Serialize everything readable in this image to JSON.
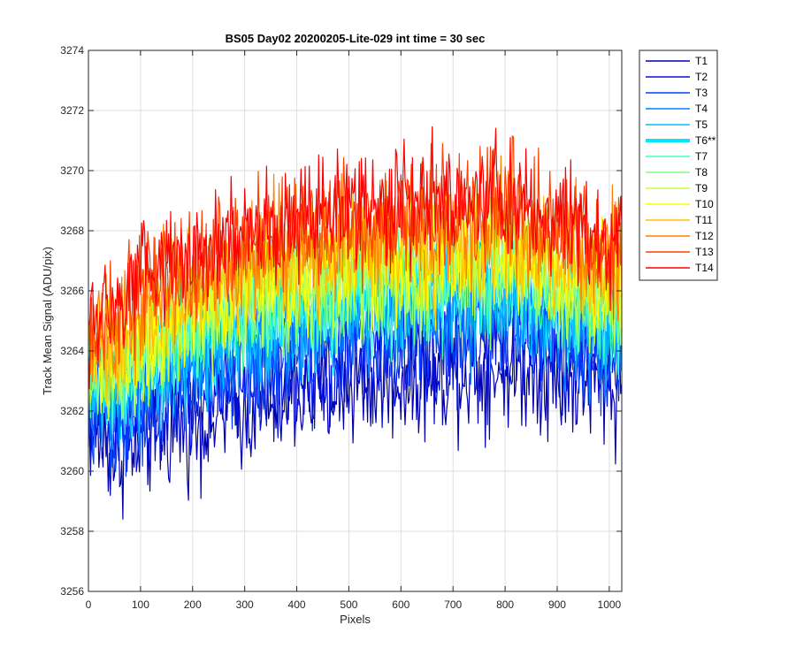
{
  "chart_data": {
    "type": "line",
    "title": "BS05 Day02 20200205-Lite-029 int time = 30 sec",
    "xlabel": "Pixels",
    "ylabel": "Track Mean Signal (ADU/pix)",
    "xlim": [
      0,
      1024
    ],
    "ylim": [
      3256,
      3274
    ],
    "xticks": [
      0,
      100,
      200,
      300,
      400,
      500,
      600,
      700,
      800,
      900,
      1000
    ],
    "yticks": [
      3256,
      3258,
      3260,
      3262,
      3264,
      3266,
      3268,
      3270,
      3272,
      3274
    ],
    "grid": true,
    "legend_position": "outside-right",
    "x_sample": [
      0,
      50,
      100,
      150,
      200,
      250,
      300,
      350,
      400,
      450,
      500,
      550,
      600,
      650,
      700,
      750,
      800,
      850,
      900,
      950,
      1000,
      1024
    ],
    "series": [
      {
        "name": "T1",
        "color": "#0000b0",
        "width": 1.5,
        "values": [
          3261.5,
          3260.5,
          3260.9,
          3261.3,
          3261.6,
          3261.8,
          3262.0,
          3262.2,
          3262.4,
          3262.6,
          3262.8,
          3262.9,
          3263.0,
          3263.1,
          3263.2,
          3263.3,
          3263.4,
          3263.4,
          3263.0,
          3262.9,
          3262.8,
          3262.7
        ]
      },
      {
        "name": "T2",
        "color": "#0010d8",
        "width": 1.5,
        "values": [
          3261.9,
          3261.1,
          3261.6,
          3262.0,
          3262.3,
          3262.5,
          3262.7,
          3262.9,
          3263.1,
          3263.3,
          3263.5,
          3263.6,
          3263.7,
          3263.8,
          3263.9,
          3264.0,
          3264.1,
          3264.1,
          3263.7,
          3263.6,
          3263.5,
          3263.4
        ]
      },
      {
        "name": "T3",
        "color": "#0040ff",
        "width": 1.5,
        "values": [
          3262.2,
          3261.6,
          3262.2,
          3262.7,
          3263.1,
          3263.4,
          3263.6,
          3263.8,
          3264.0,
          3264.2,
          3264.3,
          3264.5,
          3264.6,
          3264.7,
          3264.8,
          3264.9,
          3265.0,
          3265.0,
          3264.5,
          3264.3,
          3264.2,
          3264.1
        ]
      },
      {
        "name": "T4",
        "color": "#0080ff",
        "width": 1.5,
        "values": [
          3262.5,
          3262.0,
          3262.7,
          3263.3,
          3263.7,
          3264.0,
          3264.2,
          3264.4,
          3264.6,
          3264.8,
          3265.0,
          3265.1,
          3265.2,
          3265.3,
          3265.4,
          3265.5,
          3265.6,
          3265.5,
          3264.9,
          3264.7,
          3264.6,
          3264.5
        ]
      },
      {
        "name": "T5",
        "color": "#00c0ff",
        "width": 1.5,
        "values": [
          3262.7,
          3262.3,
          3263.0,
          3263.6,
          3264.0,
          3264.3,
          3264.6,
          3264.8,
          3265.0,
          3265.2,
          3265.3,
          3265.4,
          3265.5,
          3265.6,
          3265.7,
          3265.8,
          3265.8,
          3265.7,
          3265.1,
          3264.9,
          3264.8,
          3264.7
        ]
      },
      {
        "name": "T6**",
        "color": "#00e8ff",
        "width": 4,
        "values": [
          3262.9,
          3262.6,
          3263.3,
          3263.9,
          3264.3,
          3264.6,
          3264.9,
          3265.1,
          3265.3,
          3265.5,
          3265.6,
          3265.7,
          3265.8,
          3265.9,
          3266.0,
          3266.1,
          3266.1,
          3266.0,
          3265.3,
          3265.1,
          3265.0,
          3264.9
        ]
      },
      {
        "name": "T7",
        "color": "#40ffc0",
        "width": 1.5,
        "values": [
          3263.1,
          3262.9,
          3263.6,
          3264.2,
          3264.6,
          3264.9,
          3265.2,
          3265.4,
          3265.6,
          3265.8,
          3265.9,
          3266.0,
          3266.1,
          3266.2,
          3266.3,
          3266.4,
          3266.4,
          3266.3,
          3265.6,
          3265.4,
          3265.3,
          3265.2
        ]
      },
      {
        "name": "T8",
        "color": "#80ff80",
        "width": 1.5,
        "values": [
          3263.3,
          3263.2,
          3263.9,
          3264.5,
          3264.9,
          3265.2,
          3265.5,
          3265.7,
          3265.9,
          3266.1,
          3266.2,
          3266.3,
          3266.4,
          3266.5,
          3266.6,
          3266.7,
          3266.7,
          3266.6,
          3265.9,
          3265.7,
          3265.6,
          3265.5
        ]
      },
      {
        "name": "T9",
        "color": "#c0ff40",
        "width": 1.5,
        "values": [
          3263.5,
          3263.5,
          3264.2,
          3264.8,
          3265.2,
          3265.5,
          3265.8,
          3266.0,
          3266.2,
          3266.4,
          3266.5,
          3266.6,
          3266.7,
          3266.8,
          3266.9,
          3267.0,
          3267.0,
          3266.9,
          3266.2,
          3266.0,
          3265.9,
          3265.8
        ]
      },
      {
        "name": "T10",
        "color": "#ffff00",
        "width": 1.5,
        "values": [
          3263.7,
          3263.8,
          3264.5,
          3265.1,
          3265.5,
          3265.8,
          3266.1,
          3266.3,
          3266.5,
          3266.7,
          3266.8,
          3266.9,
          3267.0,
          3267.1,
          3267.2,
          3267.3,
          3267.3,
          3267.2,
          3266.5,
          3266.3,
          3266.2,
          3266.1
        ]
      },
      {
        "name": "T11",
        "color": "#ffc000",
        "width": 1.5,
        "values": [
          3264.0,
          3264.2,
          3265.0,
          3265.6,
          3266.0,
          3266.3,
          3266.6,
          3266.8,
          3267.0,
          3267.2,
          3267.3,
          3267.4,
          3267.5,
          3267.6,
          3267.7,
          3267.8,
          3267.8,
          3267.7,
          3267.0,
          3266.8,
          3266.7,
          3266.6
        ]
      },
      {
        "name": "T12",
        "color": "#ff8000",
        "width": 1.5,
        "values": [
          3264.3,
          3264.6,
          3265.4,
          3266.0,
          3266.4,
          3266.8,
          3267.1,
          3267.3,
          3267.5,
          3267.7,
          3267.8,
          3267.9,
          3268.0,
          3268.1,
          3268.2,
          3268.3,
          3268.3,
          3268.2,
          3267.6,
          3267.4,
          3267.2,
          3267.1
        ]
      },
      {
        "name": "T13",
        "color": "#ff4000",
        "width": 1.5,
        "values": [
          3264.6,
          3265.0,
          3265.9,
          3266.5,
          3266.9,
          3267.3,
          3267.6,
          3267.8,
          3268.0,
          3268.2,
          3268.3,
          3268.4,
          3268.5,
          3268.6,
          3268.7,
          3268.8,
          3268.8,
          3268.7,
          3268.1,
          3267.8,
          3267.5,
          3267.3
        ]
      },
      {
        "name": "T14",
        "color": "#ff0000",
        "width": 1.5,
        "values": [
          3264.8,
          3265.3,
          3266.2,
          3266.8,
          3267.3,
          3267.7,
          3268.0,
          3268.2,
          3268.4,
          3268.6,
          3268.7,
          3268.8,
          3268.9,
          3269.0,
          3269.0,
          3269.0,
          3268.9,
          3268.7,
          3268.2,
          3267.9,
          3267.6,
          3267.4
        ]
      }
    ]
  }
}
